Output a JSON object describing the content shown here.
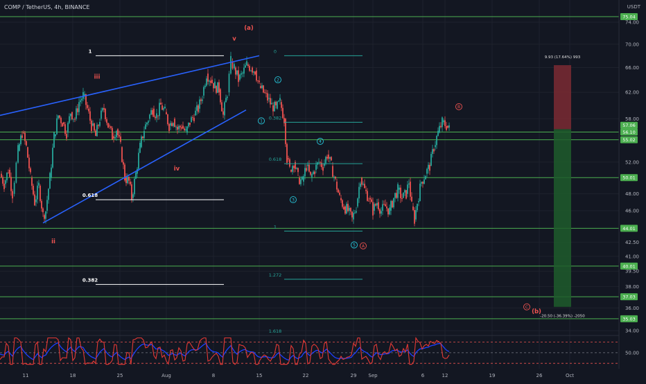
{
  "header": {
    "title": "COMP / TetherUS, 4h, BINANCE",
    "currency": "USDT"
  },
  "colors": {
    "background": "#131722",
    "grid": "#1e222d",
    "up": "#26a69a",
    "down": "#ef5350",
    "wedge": "#2962ff",
    "hline": "#4caf50",
    "fib": "#26a69a",
    "wave_red": "#ef5350",
    "wave_cyan": "#26c6da",
    "label_bg": "#4caf50",
    "long_tp": "#7b2a32",
    "long_sl": "#1f5c2c",
    "rsi_line": "#e53935",
    "rsi_signal": "#1e40ff"
  },
  "chart_data": {
    "type": "candlestick",
    "symbol": "COMP / TetherUS",
    "interval": "4h",
    "exchange": "BINANCE",
    "y_axis": {
      "ticks": [
        74.0,
        70.0,
        66.0,
        62.0,
        58.0,
        52.0,
        48.0,
        46.0,
        42.5,
        41.0,
        39.5,
        38.0,
        36.0,
        34.0
      ],
      "scale": "log",
      "ylim": [
        33.2,
        80.0
      ]
    },
    "x_axis": {
      "ticks": [
        "11",
        "18",
        "25",
        "Aug",
        "8",
        "15",
        "22",
        "29",
        "Sep",
        "6",
        "12",
        "19",
        "26",
        "Oct"
      ]
    },
    "price_path": [
      [
        0,
        50.5
      ],
      [
        6,
        49.2
      ],
      [
        12,
        51.0
      ],
      [
        18,
        48.0
      ],
      [
        26,
        53.5
      ],
      [
        32,
        56.0
      ],
      [
        38,
        54.0
      ],
      [
        44,
        50.0
      ],
      [
        50,
        47.0
      ],
      [
        56,
        49.0
      ],
      [
        62,
        45.5
      ],
      [
        66,
        46.0
      ],
      [
        72,
        50.0
      ],
      [
        78,
        55.5
      ],
      [
        84,
        58.5
      ],
      [
        90,
        57.5
      ],
      [
        96,
        56.0
      ],
      [
        102,
        59.0
      ],
      [
        108,
        58.0
      ],
      [
        114,
        60.5
      ],
      [
        120,
        61.5
      ],
      [
        126,
        59.5
      ],
      [
        132,
        57.0
      ],
      [
        138,
        55.5
      ],
      [
        144,
        58.0
      ],
      [
        150,
        59.5
      ],
      [
        156,
        57.0
      ],
      [
        162,
        55.5
      ],
      [
        168,
        56.5
      ],
      [
        174,
        54.0
      ],
      [
        180,
        50.0
      ],
      [
        186,
        49.5
      ],
      [
        190,
        47.5
      ],
      [
        196,
        50.5
      ],
      [
        202,
        54.0
      ],
      [
        208,
        56.5
      ],
      [
        214,
        58.0
      ],
      [
        220,
        59.5
      ],
      [
        226,
        58.5
      ],
      [
        232,
        60.0
      ],
      [
        238,
        59.0
      ],
      [
        244,
        57.0
      ],
      [
        250,
        58.0
      ],
      [
        256,
        56.5
      ],
      [
        262,
        57.0
      ],
      [
        268,
        56.0
      ],
      [
        274,
        57.5
      ],
      [
        280,
        58.5
      ],
      [
        286,
        59.5
      ],
      [
        292,
        61.5
      ],
      [
        298,
        65.0
      ],
      [
        304,
        64.0
      ],
      [
        310,
        63.0
      ],
      [
        316,
        62.5
      ],
      [
        322,
        58.5
      ],
      [
        328,
        62.0
      ],
      [
        333,
        67.0
      ],
      [
        338,
        66.0
      ],
      [
        344,
        64.0
      ],
      [
        350,
        65.0
      ],
      [
        356,
        66.5
      ],
      [
        362,
        66.0
      ],
      [
        368,
        65.5
      ],
      [
        374,
        63.0
      ],
      [
        380,
        62.0
      ],
      [
        386,
        61.0
      ],
      [
        392,
        60.0
      ],
      [
        398,
        59.5
      ],
      [
        404,
        60.5
      ],
      [
        410,
        58.0
      ],
      [
        414,
        52.5
      ],
      [
        418,
        51.0
      ],
      [
        424,
        52.0
      ],
      [
        430,
        50.0
      ],
      [
        436,
        49.5
      ],
      [
        442,
        51.5
      ],
      [
        448,
        50.0
      ],
      [
        454,
        51.0
      ],
      [
        460,
        52.0
      ],
      [
        466,
        51.5
      ],
      [
        472,
        53.0
      ],
      [
        478,
        51.5
      ],
      [
        484,
        49.5
      ],
      [
        490,
        47.5
      ],
      [
        496,
        46.5
      ],
      [
        502,
        46.0
      ],
      [
        508,
        45.0
      ],
      [
        514,
        46.5
      ],
      [
        520,
        50.0
      ],
      [
        526,
        48.5
      ],
      [
        532,
        47.5
      ],
      [
        538,
        46.0
      ],
      [
        544,
        47.0
      ],
      [
        550,
        46.0
      ],
      [
        556,
        46.5
      ],
      [
        562,
        46.0
      ],
      [
        568,
        47.5
      ],
      [
        574,
        48.5
      ],
      [
        580,
        47.5
      ],
      [
        586,
        48.0
      ],
      [
        590,
        49.5
      ],
      [
        594,
        46.5
      ],
      [
        598,
        45.0
      ],
      [
        602,
        47.0
      ],
      [
        608,
        49.5
      ],
      [
        614,
        50.5
      ],
      [
        620,
        51.5
      ],
      [
        626,
        54.0
      ],
      [
        632,
        56.0
      ],
      [
        638,
        57.5
      ],
      [
        644,
        57.0
      ],
      [
        648,
        56.5
      ]
    ],
    "wedge_lines": [
      {
        "name": "upper",
        "points": [
          [
            0,
            58.5
          ],
          [
            374,
            68.0
          ]
        ]
      },
      {
        "name": "lower",
        "points": [
          [
            62,
            44.6
          ],
          [
            355,
            59.3
          ]
        ]
      }
    ],
    "horizontal_levels": [
      {
        "price": 75.04,
        "label": "75.04"
      },
      {
        "price": 56.1,
        "label": "56.10"
      },
      {
        "price": 55.02,
        "label": "55.02"
      },
      {
        "price": 50.01,
        "label": "50.01"
      },
      {
        "price": 44.01,
        "label": "44.01"
      },
      {
        "price": 40.01,
        "label": "40.01"
      },
      {
        "price": 37.03,
        "label": "37.03"
      },
      {
        "price": 35.03,
        "label": "35.03"
      }
    ],
    "price_labels": [
      {
        "price": 57.06,
        "label": "57.06"
      }
    ],
    "fib_white": [
      {
        "label": "1",
        "price": 68.0,
        "x1": 138,
        "x2": 323
      },
      {
        "label": "0.618",
        "price": 47.3,
        "x1": 138,
        "x2": 323
      },
      {
        "label": "0.382",
        "price": 38.2,
        "x1": 138,
        "x2": 323
      }
    ],
    "fib_teal": [
      {
        "label": "0",
        "price": 68.0,
        "x1": 410,
        "x2": 523
      },
      {
        "label": "0.382",
        "price": 57.5,
        "x1": 410,
        "x2": 523
      },
      {
        "label": "0.618",
        "price": 51.8,
        "x1": 410,
        "x2": 523
      },
      {
        "label": "1",
        "price": 43.7,
        "x1": 410,
        "x2": 523
      },
      {
        "label": "1.272",
        "price": 38.7,
        "x1": 410,
        "x2": 523
      },
      {
        "label": "1.618",
        "price": 33.6,
        "x1": 410,
        "x2": 523
      }
    ],
    "wave_labels": [
      {
        "text": "(a)",
        "x": 359,
        "price": 73.0,
        "color": "red",
        "circled": false
      },
      {
        "text": "v",
        "x": 338,
        "price": 71.0,
        "color": "red",
        "circled": false
      },
      {
        "text": "iii",
        "x": 140,
        "price": 64.5,
        "color": "red",
        "circled": false
      },
      {
        "text": "iv",
        "x": 255,
        "price": 51.2,
        "color": "red",
        "circled": false
      },
      {
        "text": "ii",
        "x": 77,
        "price": 42.6,
        "color": "red",
        "circled": false
      },
      {
        "text": "(b)",
        "x": 774,
        "price": 35.7,
        "color": "red",
        "circled": false
      },
      {
        "text": "B",
        "x": 662,
        "price": 59.8,
        "color": "red",
        "circled": true
      },
      {
        "text": "A",
        "x": 524,
        "price": 42.1,
        "color": "red",
        "circled": true
      },
      {
        "text": "C",
        "x": 760,
        "price": 36.1,
        "color": "red",
        "circled": true
      },
      {
        "text": "1",
        "x": 377,
        "price": 57.7,
        "color": "cyan",
        "circled": true
      },
      {
        "text": "2",
        "x": 401,
        "price": 64.0,
        "color": "cyan",
        "circled": true
      },
      {
        "text": "3",
        "x": 423,
        "price": 47.3,
        "color": "cyan",
        "circled": true
      },
      {
        "text": "4",
        "x": 462,
        "price": 54.8,
        "color": "cyan",
        "circled": true
      },
      {
        "text": "5",
        "x": 511,
        "price": 42.2,
        "color": "cyan",
        "circled": true
      }
    ],
    "position_tool": {
      "entry": 56.5,
      "target": 66.4,
      "stop": 36.1,
      "x1": 799,
      "x2": 824,
      "target_label": "9.93 (17.64%) 993",
      "stop_label": "-20.50 (-36.39%) -2050"
    },
    "rsi": {
      "levels": [
        70,
        50,
        30
      ],
      "tick_labels": [
        "50.00"
      ]
    }
  }
}
